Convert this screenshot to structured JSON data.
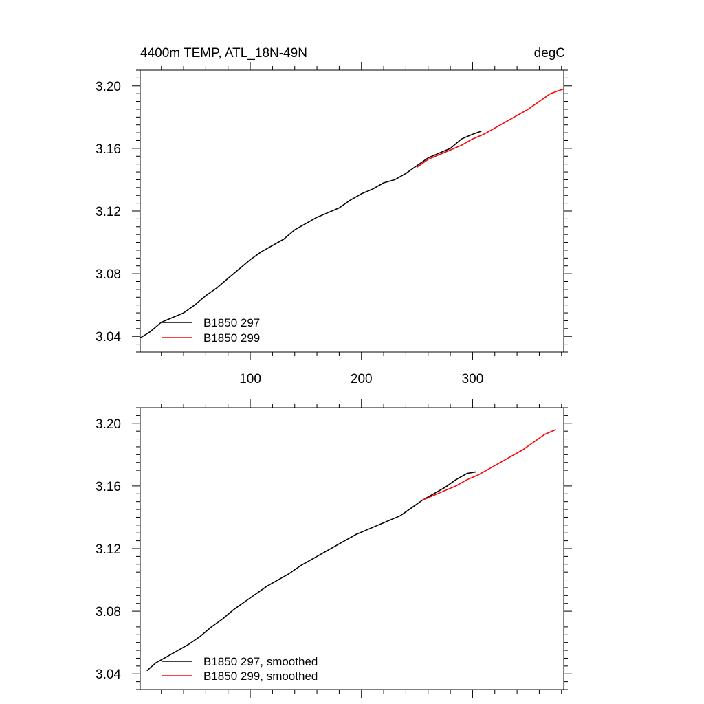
{
  "chart_data": [
    {
      "type": "line",
      "title": "4400m TEMP, ATL_18N-49N",
      "units": "degC",
      "xlim": [
        1,
        382
      ],
      "ylim": [
        3.03,
        3.21
      ],
      "x_ticks": [
        100,
        200,
        300
      ],
      "x_tick_labels": [
        "100",
        "200",
        "300"
      ],
      "y_ticks": [
        3.04,
        3.08,
        3.12,
        3.16,
        3.2
      ],
      "y_tick_labels": [
        "3.04",
        "3.08",
        "3.12",
        "3.16",
        "3.20"
      ],
      "legend_position": "bottom-left",
      "series": [
        {
          "name": "B1850 297",
          "color": "#000000",
          "x": [
            1,
            10,
            20,
            30,
            40,
            50,
            60,
            70,
            80,
            90,
            100,
            110,
            120,
            130,
            140,
            150,
            160,
            170,
            180,
            190,
            200,
            210,
            220,
            230,
            240,
            250,
            260,
            270,
            280,
            290,
            300,
            308
          ],
          "y": [
            3.039,
            3.043,
            3.049,
            3.052,
            3.055,
            3.06,
            3.066,
            3.071,
            3.077,
            3.083,
            3.089,
            3.094,
            3.098,
            3.102,
            3.108,
            3.112,
            3.116,
            3.119,
            3.122,
            3.127,
            3.131,
            3.134,
            3.138,
            3.14,
            3.144,
            3.149,
            3.154,
            3.157,
            3.16,
            3.166,
            3.169,
            3.171
          ]
        },
        {
          "name": "B1850 299",
          "color": "#ff0000",
          "x": [
            250,
            260,
            270,
            280,
            290,
            300,
            310,
            320,
            330,
            340,
            350,
            360,
            370,
            382
          ],
          "y": [
            3.148,
            3.153,
            3.156,
            3.159,
            3.162,
            3.166,
            3.169,
            3.173,
            3.177,
            3.181,
            3.185,
            3.19,
            3.195,
            3.198
          ]
        }
      ]
    },
    {
      "type": "line",
      "xlim": [
        1,
        382
      ],
      "ylim": [
        3.03,
        3.21
      ],
      "x_ticks": [
        100,
        200,
        300
      ],
      "y_ticks": [
        3.04,
        3.08,
        3.12,
        3.16,
        3.2
      ],
      "y_tick_labels": [
        "3.04",
        "3.08",
        "3.12",
        "3.16",
        "3.20"
      ],
      "legend_position": "bottom-left",
      "series": [
        {
          "name": "B1850 297, smoothed",
          "color": "#000000",
          "x": [
            7,
            15,
            25,
            35,
            45,
            55,
            65,
            75,
            85,
            95,
            105,
            115,
            125,
            135,
            145,
            155,
            165,
            175,
            185,
            195,
            205,
            215,
            225,
            235,
            245,
            255,
            265,
            275,
            285,
            295,
            303
          ],
          "y": [
            3.042,
            3.047,
            3.051,
            3.055,
            3.059,
            3.064,
            3.07,
            3.075,
            3.081,
            3.086,
            3.091,
            3.096,
            3.1,
            3.104,
            3.109,
            3.113,
            3.117,
            3.121,
            3.125,
            3.129,
            3.132,
            3.135,
            3.138,
            3.141,
            3.146,
            3.151,
            3.155,
            3.159,
            3.164,
            3.168,
            3.169
          ]
        },
        {
          "name": "B1850 299, smoothed",
          "color": "#ff0000",
          "x": [
            255,
            265,
            275,
            285,
            295,
            305,
            315,
            325,
            335,
            345,
            355,
            365,
            375
          ],
          "y": [
            3.151,
            3.154,
            3.157,
            3.16,
            3.164,
            3.167,
            3.171,
            3.175,
            3.179,
            3.183,
            3.188,
            3.193,
            3.196
          ]
        }
      ]
    }
  ]
}
